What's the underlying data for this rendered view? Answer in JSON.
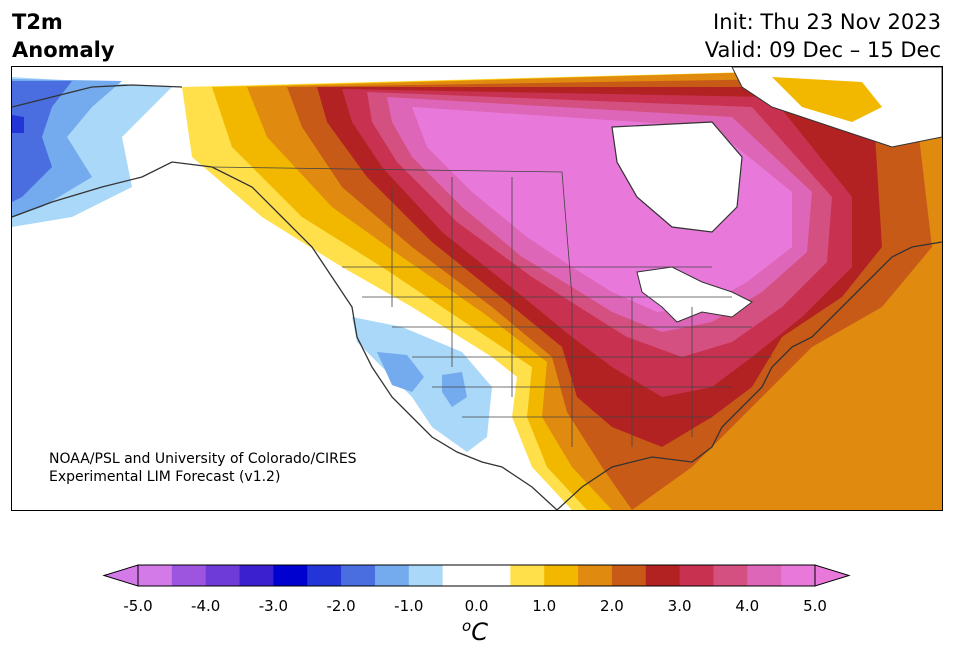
{
  "header": {
    "title_line1": "T2m",
    "title_line2": "Anomaly",
    "init": "Init: Thu 23 Nov 2023",
    "valid": "Valid: 09 Dec – 15 Dec"
  },
  "credit": {
    "line1": "NOAA/PSL and University of Colorado/CIRES",
    "line2": "Experimental LIM Forecast (v1.2)"
  },
  "colorbar": {
    "unit_base": "C",
    "unit_sup": "o",
    "tick_labels": [
      "-5.0",
      "-4.0",
      "-3.0",
      "-2.0",
      "-1.0",
      "0.0",
      "1.0",
      "2.0",
      "3.0",
      "4.0",
      "5.0"
    ],
    "colors": [
      "#d479e8",
      "#9d55df",
      "#6e3ad8",
      "#3a20cf",
      "#0000cf",
      "#2435d8",
      "#4a6ee0",
      "#74aaee",
      "#aad8f8",
      "#ffffff",
      "#ffffff",
      "#ffe04a",
      "#f2b800",
      "#e08a10",
      "#c85a18",
      "#b22222",
      "#c83250",
      "#d45080",
      "#de66b8",
      "#e879da"
    ],
    "under_color": "#d479e8",
    "over_color": "#e879da"
  },
  "palette": {
    "cold1": "#aad8f8",
    "cold2": "#74aaee",
    "cold3": "#4a6ee0",
    "cold4": "#2435d8",
    "warm1": "#ffe04a",
    "warm2": "#f2b800",
    "warm3": "#e08a10",
    "warm4": "#c85a18",
    "warm5": "#b22222",
    "warm6": "#c83250",
    "warm7": "#d45080",
    "warm8": "#de66b8",
    "warm9": "#e879da"
  }
}
